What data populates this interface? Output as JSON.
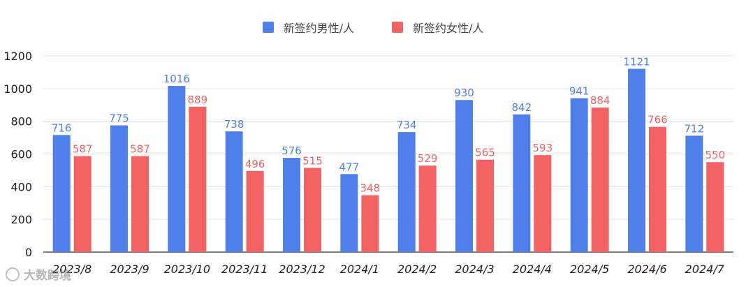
{
  "colors": {
    "male": "#4F7FE8",
    "female": "#F26262",
    "grid": "#E3E3E3",
    "axis": "#333333"
  },
  "chart_data": {
    "type": "bar",
    "categories": [
      "2023/8",
      "2023/9",
      "2023/10",
      "2023/11",
      "2023/12",
      "2024/1",
      "2024/2",
      "2024/3",
      "2024/4",
      "2024/5",
      "2024/6",
      "2024/7"
    ],
    "series": [
      {
        "name": "新签约男性/人",
        "values": [
          716,
          775,
          1016,
          738,
          576,
          477,
          734,
          930,
          842,
          941,
          1121,
          712
        ]
      },
      {
        "name": "新签约女性/人",
        "values": [
          587,
          587,
          889,
          496,
          515,
          348,
          529,
          565,
          593,
          884,
          766,
          550
        ]
      }
    ],
    "ylim": [
      0,
      1200
    ],
    "yticks": [
      0,
      200,
      400,
      600,
      800,
      1000,
      1200
    ],
    "grid": true,
    "legend_position": "top-center",
    "data_labels": true
  },
  "watermark": {
    "text": "大数跨境"
  }
}
